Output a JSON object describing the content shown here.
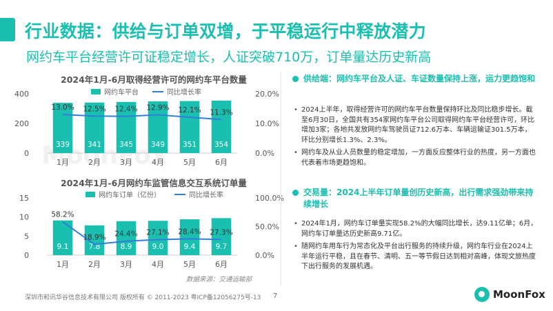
{
  "header": {
    "title": "行业数据：供给与订单双增，于平稳运行中释放潜力",
    "subtitle": "网约车平台经营许可证稳定增长，人证突破710万，订单量达历史新高"
  },
  "watermark": "MoonFox",
  "chart_data": [
    {
      "type": "bar",
      "title": "2024年1月-6月取得经营许可的网约车平台数量",
      "categories": [
        "1月",
        "2月",
        "3月",
        "4月",
        "5月",
        "6月"
      ],
      "series": [
        {
          "name": "网约车平台",
          "values": [
            339,
            341,
            345,
            349,
            351,
            354
          ],
          "axis": "left"
        },
        {
          "name": "同比增长率",
          "type": "line",
          "values": [
            13.0,
            12.5,
            12.4,
            12.9,
            12.1,
            11.3
          ],
          "axis": "right"
        }
      ],
      "y_ticks": [
        "0",
        "200",
        "400"
      ],
      "ylim": [
        0,
        400
      ],
      "y2_ticks": [
        "0.0%",
        "10.0%",
        "20.0%"
      ],
      "y2lim": [
        0,
        20
      ],
      "data_labels": [
        "339",
        "341",
        "345",
        "349",
        "351",
        "354"
      ],
      "line_labels": [
        "13.0%",
        "12.5%",
        "12.4%",
        "12.9%",
        "12.1%",
        "11.3%"
      ],
      "grid": false,
      "legend_position": "top"
    },
    {
      "type": "bar",
      "title": "2024年1月-6月网约车监管信息交互系统订单量",
      "categories": [
        "1月",
        "2月",
        "3月",
        "4月",
        "5月",
        "6月"
      ],
      "series": [
        {
          "name": "网约车订单（亿份）",
          "values": [
            9.1,
            7.8,
            8.9,
            9.0,
            9.4,
            9.7
          ],
          "axis": "left"
        },
        {
          "name": "同比增长率",
          "type": "line",
          "values": [
            58.2,
            18.9,
            24.4,
            27.1,
            28.4,
            27.3
          ],
          "axis": "right"
        }
      ],
      "y_ticks": [
        "0",
        "5",
        "10",
        "15"
      ],
      "ylim": [
        0,
        15
      ],
      "y2_ticks": [
        "0.0%",
        "50.0%",
        "100.0%"
      ],
      "y2lim": [
        0,
        100
      ],
      "data_labels": [
        "9.1",
        "7.8",
        "8.9",
        "9.0",
        "9.4",
        "9.7"
      ],
      "line_labels": [
        "58.2%",
        "18.9%",
        "24.4%",
        "27.1%",
        "28.4%",
        "27.3%"
      ],
      "grid": false,
      "legend_position": "top"
    }
  ],
  "source": "数据来源：交通运输部",
  "right_panel": {
    "section1": {
      "heading": "供给端：网约车平台及人证、车证数量保持上涨，运力更趋饱和",
      "bullets": [
        "2024上半年，取得经营许可的网约车平台数量保持环比及同比稳步增长。截至6月30日，全国共有354家网约车平台公司取得网约车平台经营许可，环比增加3家；各地共发放网约车驾驶员证712.6万本、车辆运输证301.5万本，环比分别增长1.3%、2.3%。",
        "网约车及从业人员数量的稳定增加，一方面反应整体行业的热度，另一方面也代表着市场更趋饱和。"
      ]
    },
    "section2": {
      "heading": "交易量：2024上半年订单量创历史新高，出行需求强劲带来持续增长",
      "bullets": [
        "2024年1月，网约车订单量实现58.2%的大幅同比增长，达9.11亿单；6月，网约车订单量达历史新高9.71亿。",
        "随网约车用车行为常态化及平台出行服务的持续升级，网约车行业在2024上半年运行平稳，且在春节、清明、五一等节假日达到相对高峰，体现文旅热度下出行服务的发展机遇。"
      ]
    }
  },
  "footer": {
    "copyright": "深圳市和讯华谷信息技术有限公司 版权所有 © 2011-2023 粤ICP备12056275号-13",
    "page_number": "7",
    "logo_text": "MoonFox"
  },
  "colors": {
    "accent": "#1bbfb0",
    "line": "#2f7fd8"
  }
}
